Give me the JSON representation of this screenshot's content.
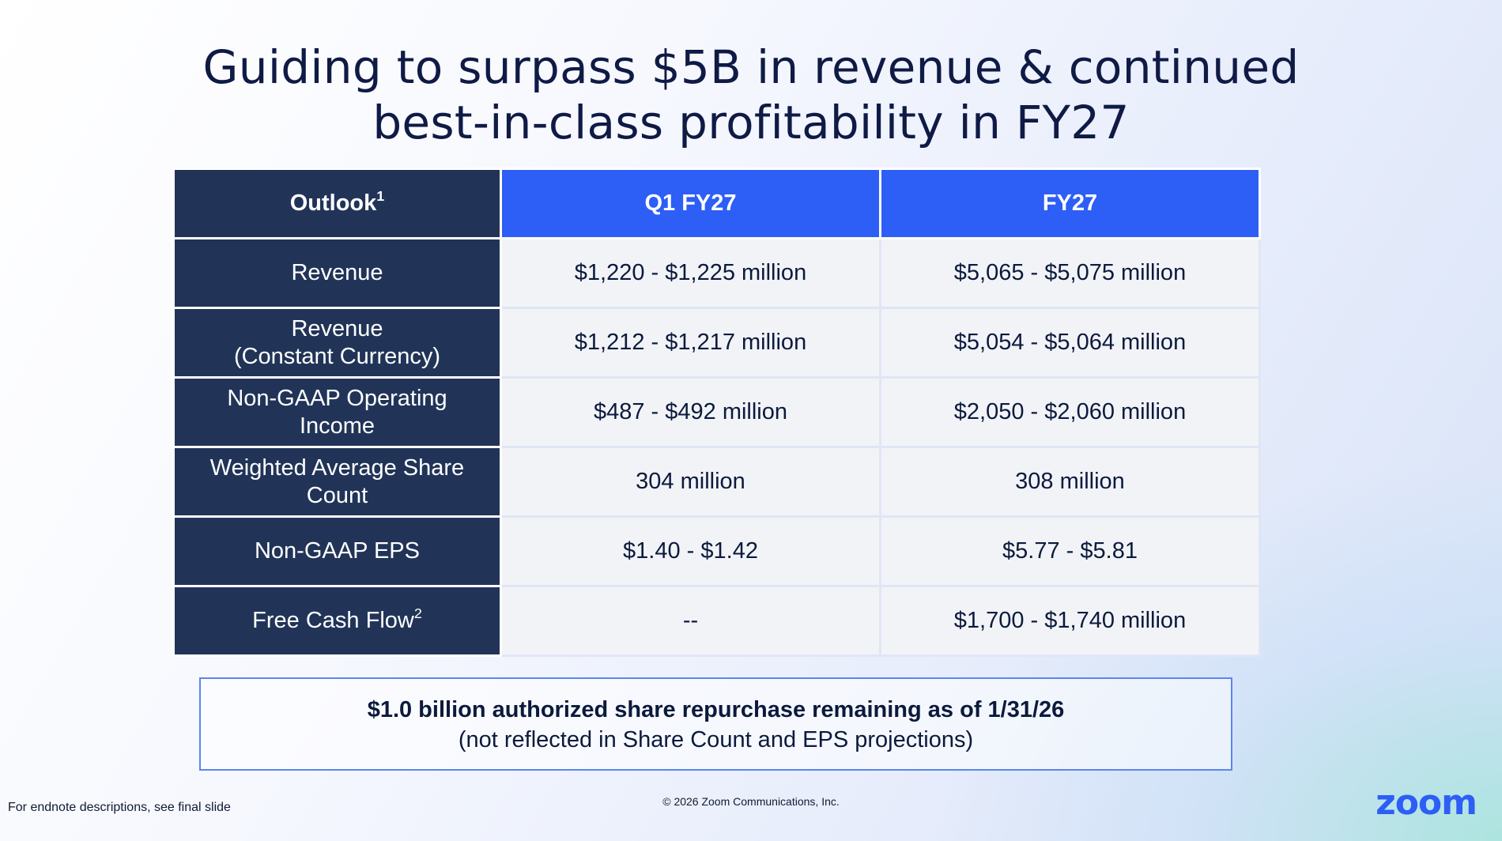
{
  "title": {
    "line1": "Guiding to surpass $5B in revenue & continued",
    "line2": "best-in-class profitability in FY27"
  },
  "table": {
    "header": {
      "label": "Outlook",
      "label_sup": "1",
      "col1": "Q1 FY27",
      "col2": "FY27"
    },
    "rows": [
      {
        "label": "Revenue",
        "label2": "",
        "sup": "",
        "q1": "$1,220 - $1,225 million",
        "fy": "$5,065 - $5,075 million"
      },
      {
        "label": "Revenue",
        "label2": "(Constant Currency)",
        "sup": "",
        "q1": "$1,212 - $1,217 million",
        "fy": "$5,054 - $5,064 million"
      },
      {
        "label": "Non-GAAP Operating",
        "label2": "Income",
        "sup": "",
        "q1": "$487 - $492 million",
        "fy": "$2,050 - $2,060 million"
      },
      {
        "label": "Weighted Average Share",
        "label2": "Count",
        "sup": "",
        "q1": "304 million",
        "fy": "308 million"
      },
      {
        "label": "Non-GAAP EPS",
        "label2": "",
        "sup": "",
        "q1": "$1.40 - $1.42",
        "fy": "$5.77 - $5.81"
      },
      {
        "label": "Free Cash Flow",
        "label2": "",
        "sup": "2",
        "q1": "--",
        "fy": "$1,700 - $1,740 million"
      }
    ]
  },
  "callout": {
    "main": "$1.0 billion authorized share repurchase remaining as of 1/31/26",
    "sub": "(not reflected in Share Count and EPS projections)"
  },
  "footer": {
    "endnote": "For endnote descriptions, see final slide",
    "copyright": "© 2026 Zoom Communications, Inc.",
    "logo": "zoom"
  },
  "colors": {
    "navy": "#213458",
    "blue": "#2d5ef5",
    "cell": "#f2f3f7"
  }
}
